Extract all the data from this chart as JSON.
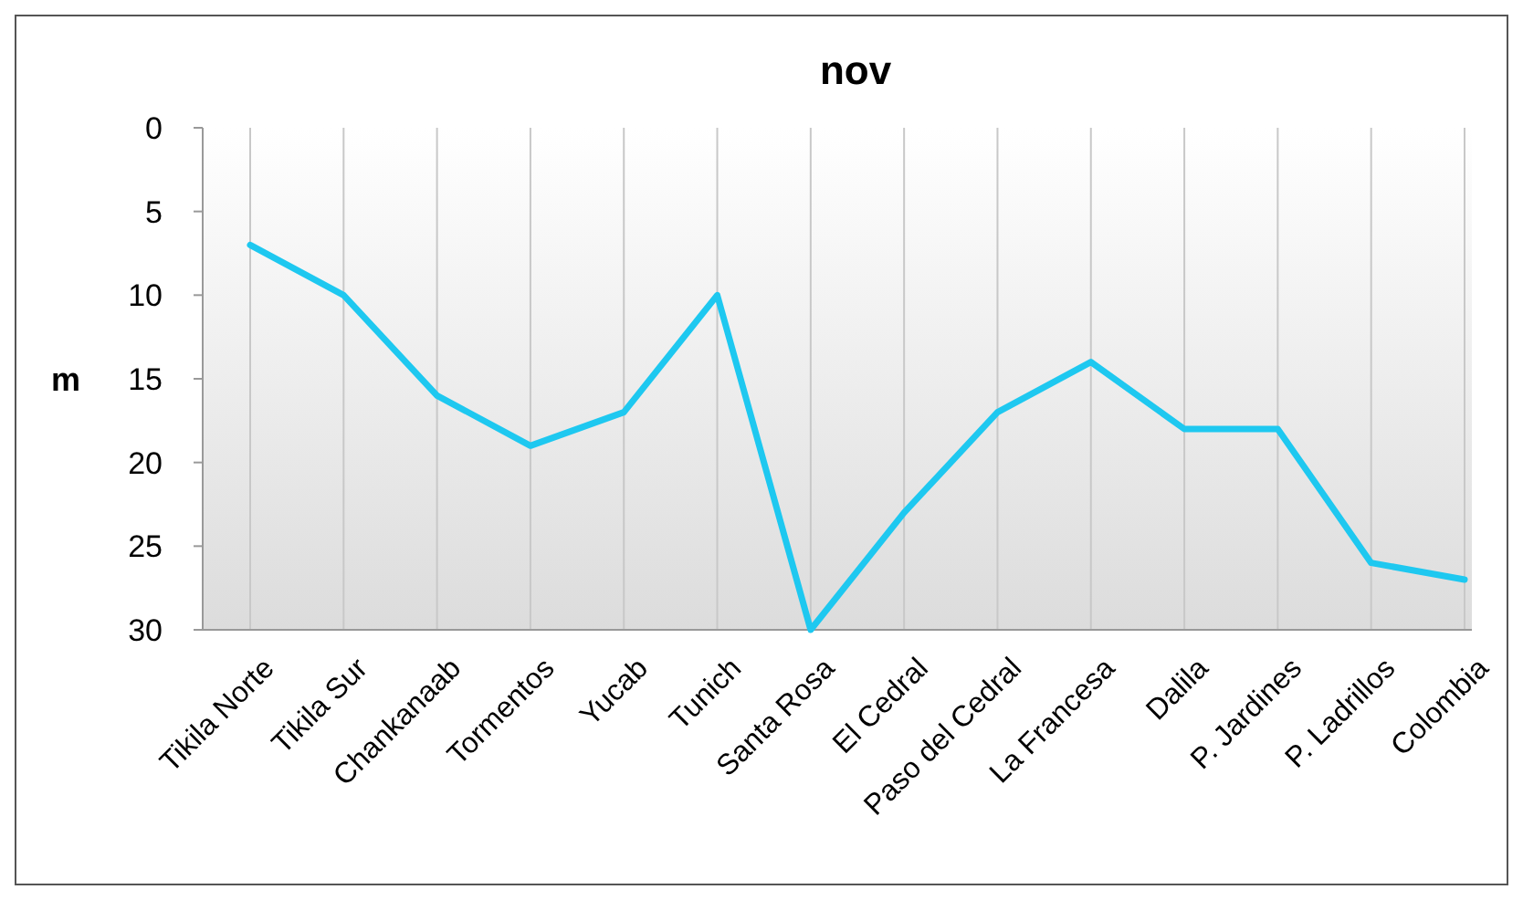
{
  "chart_data": {
    "type": "line",
    "title": "nov",
    "ylabel": "m",
    "categories": [
      "Tikila Norte",
      "Tikila Sur",
      "Chankanaab",
      "Tormentos",
      "Yucab",
      "Tunich",
      "Santa Rosa",
      "El Cedral",
      "Paso del Cedral",
      "La Francesa",
      "Dalila",
      "P. Jardines",
      "P. Ladrillos",
      "Colombia"
    ],
    "series": [
      {
        "color": "#1ec8f0",
        "values": [
          7,
          10,
          16,
          19,
          17,
          10,
          30,
          23,
          17,
          14,
          18,
          18,
          26,
          27
        ]
      }
    ],
    "ylim": [
      30,
      0
    ],
    "yticks": [
      0,
      5,
      10,
      15,
      20,
      25,
      30
    ],
    "grid": "x",
    "marker": "none",
    "line_style": "solid"
  }
}
